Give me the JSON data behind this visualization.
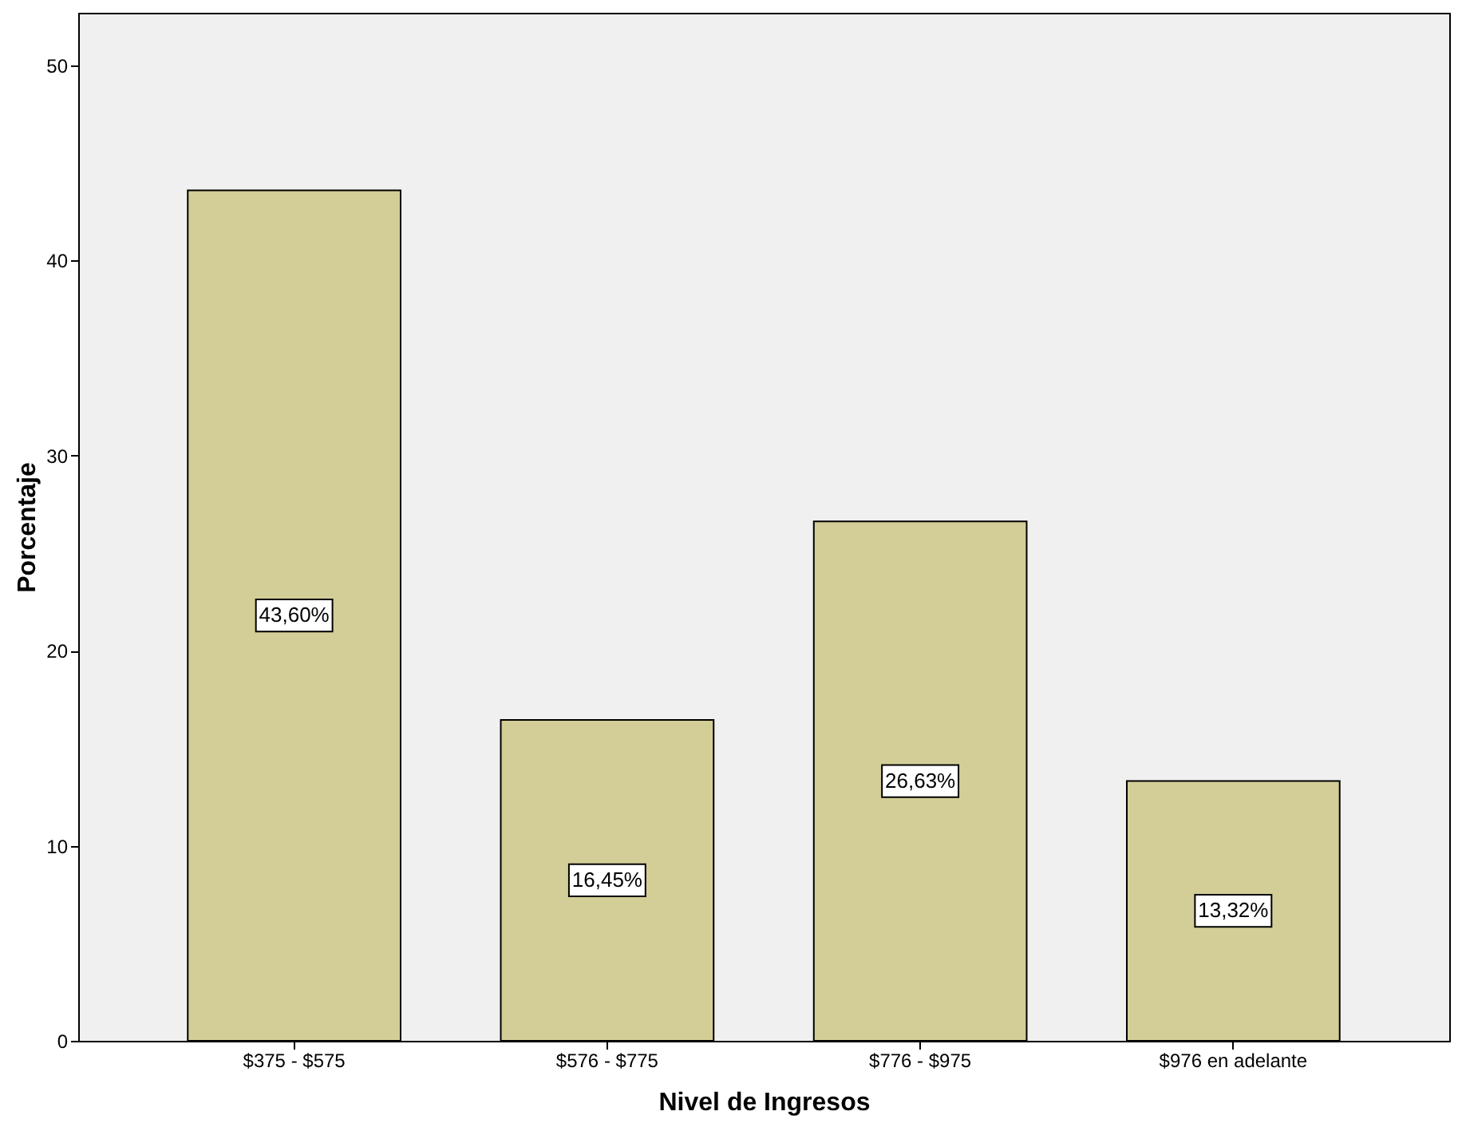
{
  "chart_data": {
    "type": "bar",
    "xlabel": "Nivel de Ingresos",
    "ylabel": "Porcentaje",
    "categories": [
      "$375 - $575",
      "$576 - $775",
      "$776 - $975",
      "$976 en adelante"
    ],
    "values": [
      43.6,
      16.45,
      26.63,
      13.32
    ],
    "value_labels": [
      "43,60%",
      "16,45%",
      "26,63%",
      "13,32%"
    ],
    "color": "#d3ce97",
    "ylim": [
      0,
      52.7
    ],
    "yticks": [
      0,
      10,
      20,
      30,
      40,
      50
    ],
    "grid": false
  }
}
